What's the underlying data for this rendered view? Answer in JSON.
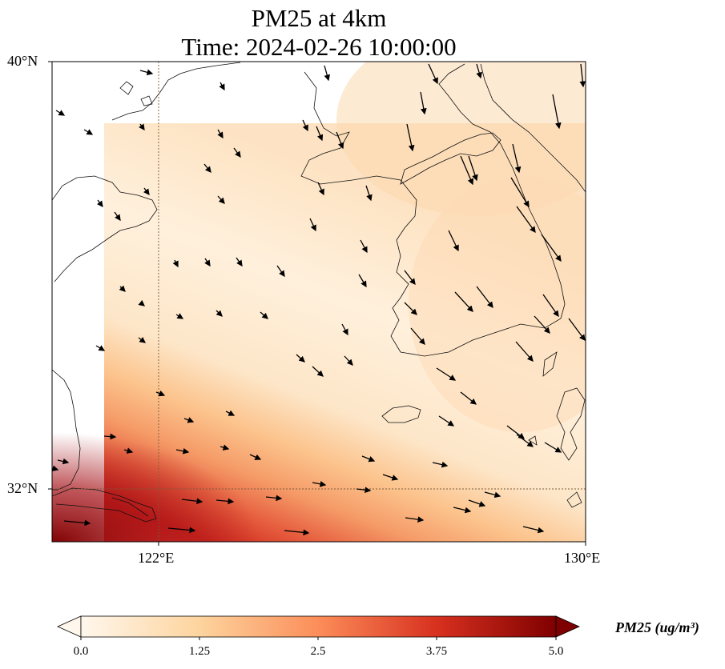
{
  "title": {
    "line1": "PM25 at 4km",
    "line2": "Time: 2024-02-26 10:00:00"
  },
  "axes": {
    "lat_ticks": [
      "40°N",
      "32°N"
    ],
    "lon_ticks": [
      "122°E",
      "130°E"
    ]
  },
  "colorbar": {
    "label": "PM25 (ug/m³)",
    "ticks": [
      "0.0",
      "1.25",
      "2.5",
      "3.75",
      "5.0"
    ],
    "range": [
      0,
      5
    ],
    "colormap": "OrRd",
    "extend": "both"
  },
  "chart_data": {
    "type": "heatmap",
    "variable": "PM25",
    "units": "ug/m3",
    "lat_range": [
      31.1,
      40.0
    ],
    "lon_range": [
      120.0,
      130.0
    ],
    "gridlines": "dotted at 32°N and 122°E",
    "field_description": "low values (~0.3-1.0) over the Yellow Sea and Korean peninsula, a band of high values (~3-4.5) running WNW-ESE across the south, maximum (~5) near the southwest corner",
    "wind_vectors": "arrows pointing southeast to south-southeast"
  }
}
